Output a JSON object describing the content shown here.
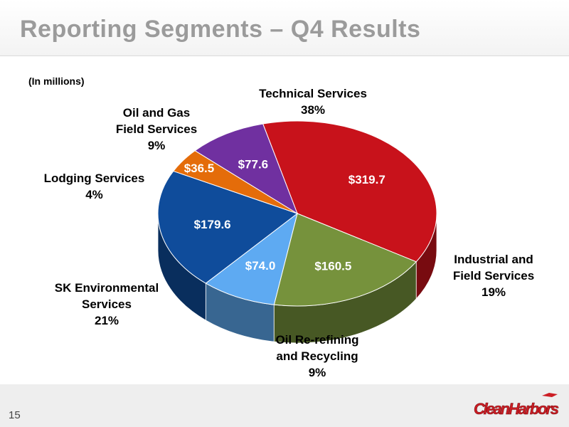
{
  "slide": {
    "title": "Reporting Segments – Q4 Results",
    "units_note": "(In millions)",
    "page_number": "15",
    "logo_text": "CleanHarbors"
  },
  "colors": {
    "title": "#9b9b9b",
    "technical": "#c8121b",
    "industrial": "#76923c",
    "rerefining": "#5eaaf2",
    "sk": "#0f4c9b",
    "lodging": "#e46c0a",
    "oilgas": "#7030a0",
    "logo": "#cc1d24"
  },
  "chart_data": {
    "type": "pie",
    "units": "$ millions",
    "slices": [
      {
        "name_lines": [
          "Technical Services"
        ],
        "percent": "38%",
        "value": 319.7,
        "value_label": "$319.7",
        "color": "#c8121b"
      },
      {
        "name_lines": [
          "Industrial and",
          "Field Services"
        ],
        "percent": "19%",
        "value": 160.5,
        "value_label": "$160.5",
        "color": "#76923c"
      },
      {
        "name_lines": [
          "Oil Re-refining",
          "and Recycling"
        ],
        "percent": "9%",
        "value": 74.0,
        "value_label": "$74.0",
        "color": "#5eaaf2"
      },
      {
        "name_lines": [
          "SK Environmental",
          "Services"
        ],
        "percent": "21%",
        "value": 179.6,
        "value_label": "$179.6",
        "color": "#0f4c9b"
      },
      {
        "name_lines": [
          "Lodging Services"
        ],
        "percent": "4%",
        "value": 36.5,
        "value_label": "$36.5",
        "color": "#e46c0a"
      },
      {
        "name_lines": [
          "Oil and Gas",
          "Field Services"
        ],
        "percent": "9%",
        "value": 77.6,
        "value_label": "$77.6",
        "color": "#7030a0"
      }
    ]
  }
}
